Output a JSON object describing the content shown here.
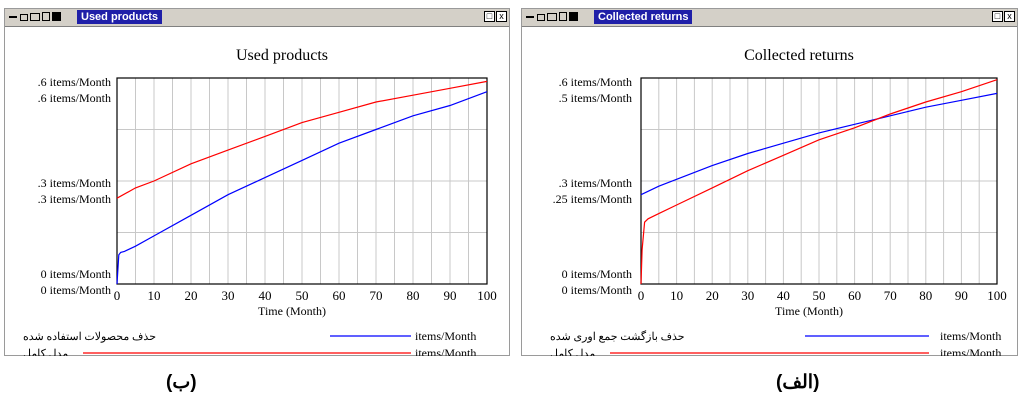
{
  "colors": {
    "blue": "#0000ff",
    "red": "#ff0000",
    "title_bg": "#1f1fa8"
  },
  "panels": [
    {
      "window_title": "Used products",
      "caption": "(ب)",
      "chart_data": {
        "type": "line",
        "title": "Used products",
        "xlabel": "Time (Month)",
        "x_ticks": [
          "0",
          "10",
          "20",
          "30",
          "40",
          "50",
          "60",
          "70",
          "80",
          "90",
          "100"
        ],
        "xlim": [
          0,
          100
        ],
        "ylim": [
          0,
          0.6
        ],
        "y_axis_left_labels": [
          {
            "top": ".6  items/Month",
            "bottom": ".6  items/Month"
          },
          {
            "top": ".3  items/Month",
            "bottom": ".3  items/Month"
          },
          {
            "top": "0  items/Month",
            "bottom": "0  items/Month"
          }
        ],
        "series": [
          {
            "name": "حذف محصولات استفاده شده",
            "unit": "items/Month",
            "color": "#0000ff",
            "x": [
              0,
              0.5,
              1,
              2,
              5,
              10,
              20,
              30,
              40,
              50,
              60,
              70,
              80,
              90,
              100
            ],
            "y": [
              0,
              0.085,
              0.092,
              0.095,
              0.11,
              0.14,
              0.2,
              0.26,
              0.31,
              0.36,
              0.41,
              0.45,
              0.49,
              0.52,
              0.56
            ]
          },
          {
            "name": "مدل کامل",
            "unit": "items/Month",
            "color": "#ff0000",
            "x": [
              0,
              5,
              10,
              20,
              30,
              40,
              50,
              60,
              70,
              80,
              90,
              100
            ],
            "y": [
              0.25,
              0.28,
              0.3,
              0.35,
              0.39,
              0.43,
              0.47,
              0.5,
              0.53,
              0.55,
              0.57,
              0.59
            ]
          }
        ]
      }
    },
    {
      "window_title": "Collected returns",
      "caption": "(الف)",
      "chart_data": {
        "type": "line",
        "title": "Collected returns",
        "xlabel": "Time (Month)",
        "x_ticks": [
          "0",
          "10",
          "20",
          "30",
          "40",
          "50",
          "60",
          "70",
          "80",
          "90",
          "100"
        ],
        "xlim": [
          0,
          100
        ],
        "ylim": [
          0,
          0.6
        ],
        "y_axis_left_labels": [
          {
            "top": ".6  items/Month",
            "bottom": ".5  items/Month"
          },
          {
            "top": ".3  items/Month",
            "bottom": ".25  items/Month"
          },
          {
            "top": "0  items/Month",
            "bottom": "0  items/Month"
          }
        ],
        "series": [
          {
            "name": "حذف بازگشت جمع اوری شده",
            "unit": "items/Month",
            "color": "#0000ff",
            "x": [
              0,
              5,
              10,
              20,
              30,
              40,
              50,
              60,
              70,
              80,
              90,
              100
            ],
            "y": [
              0.26,
              0.285,
              0.305,
              0.345,
              0.38,
              0.41,
              0.44,
              0.465,
              0.49,
              0.515,
              0.535,
              0.555
            ]
          },
          {
            "name": "مدل کامل",
            "unit": "items/Month",
            "color": "#ff0000",
            "x": [
              0,
              0.3,
              1,
              2,
              5,
              10,
              20,
              30,
              40,
              50,
              60,
              70,
              80,
              90,
              100
            ],
            "y": [
              0,
              0.1,
              0.18,
              0.19,
              0.205,
              0.23,
              0.28,
              0.33,
              0.375,
              0.42,
              0.455,
              0.495,
              0.53,
              0.56,
              0.595
            ]
          }
        ]
      }
    }
  ]
}
